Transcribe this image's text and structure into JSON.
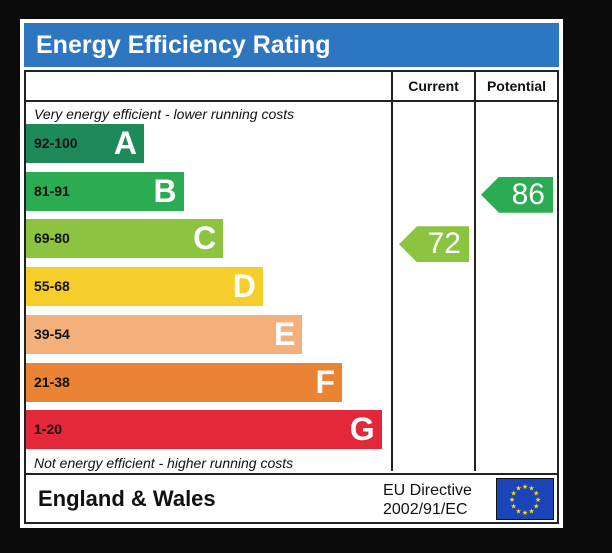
{
  "title": "Energy Efficiency Rating",
  "columns": {
    "current": "Current",
    "potential": "Potential"
  },
  "top_caption": "Very energy efficient - lower running costs",
  "bottom_caption": "Not energy efficient - higher running costs",
  "footer": {
    "region": "England & Wales",
    "directive_line1": "EU Directive",
    "directive_line2": "2002/91/EC"
  },
  "chart_data": {
    "type": "bar",
    "bands": [
      {
        "range": "92-100",
        "letter": "A",
        "color": "#1e8a5a",
        "min": 92,
        "max": 100
      },
      {
        "range": "81-91",
        "letter": "B",
        "color": "#2bab52",
        "min": 81,
        "max": 91
      },
      {
        "range": "69-80",
        "letter": "C",
        "color": "#8cc442",
        "min": 69,
        "max": 80
      },
      {
        "range": "55-68",
        "letter": "D",
        "color": "#f5ce2b",
        "min": 55,
        "max": 68
      },
      {
        "range": "39-54",
        "letter": "E",
        "color": "#f4b07a",
        "min": 39,
        "max": 54
      },
      {
        "range": "21-38",
        "letter": "F",
        "color": "#ea8434",
        "min": 21,
        "max": 38
      },
      {
        "range": "1-20",
        "letter": "G",
        "color": "#e2283a",
        "min": 1,
        "max": 20
      }
    ],
    "ratings": {
      "current": {
        "value": 72,
        "label": "72",
        "band": "C",
        "color": "#8cc442"
      },
      "potential": {
        "value": 86,
        "label": "86",
        "band": "B",
        "color": "#2bab52"
      }
    }
  }
}
